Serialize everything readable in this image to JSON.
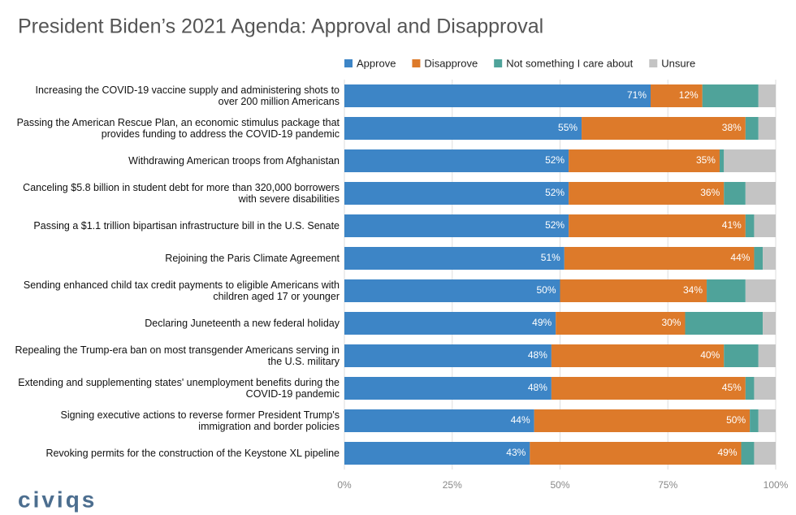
{
  "chart_data": {
    "type": "stacked-bar-horizontal",
    "title": "President Biden’s 2021 Agenda: Approval and Disapproval",
    "logo": "civiqs",
    "categories": [
      "Increasing the COVID-19 vaccine supply and administering shots to over 200 million Americans",
      "Passing the American Rescue Plan, an economic stimulus package that provides funding to address the COVID-19 pandemic",
      "Withdrawing American troops from Afghanistan",
      "Canceling $5.8 billion in student debt for more than 320,000 borrowers with severe disabilities",
      "Passing a $1.1 trillion bipartisan infrastructure bill in the U.S. Senate",
      "Rejoining the Paris Climate Agreement",
      "Sending enhanced child tax credit payments to eligible Americans with children aged 17 or younger",
      "Declaring Juneteenth a new federal holiday",
      "Repealing the Trump-era ban on most transgender Americans serving in the U.S. military",
      "Extending and supplementing states' unemployment benefits during the COVID-19 pandemic",
      "Signing executive actions to reverse former President Trump's immigration and border policies",
      "Revoking permits for the construction of the Keystone XL pipeline"
    ],
    "series": [
      {
        "name": "Approve",
        "color": "#3d85c6",
        "values": [
          71,
          55,
          52,
          52,
          52,
          51,
          50,
          49,
          48,
          48,
          44,
          43
        ],
        "value_labels": [
          "71%",
          "55%",
          "52%",
          "52%",
          "52%",
          "51%",
          "50%",
          "49%",
          "48%",
          "48%",
          "44%",
          "43%"
        ]
      },
      {
        "name": "Disapprove",
        "color": "#dd7a2a",
        "values": [
          12,
          38,
          35,
          36,
          41,
          44,
          34,
          30,
          40,
          45,
          50,
          49
        ],
        "value_labels": [
          "12%",
          "38%",
          "35%",
          "36%",
          "41%",
          "44%",
          "34%",
          "30%",
          "40%",
          "45%",
          "50%",
          "49%"
        ]
      },
      {
        "name": "Not something I care about",
        "color": "#4fa39a",
        "values": [
          13,
          3,
          1,
          5,
          2,
          2,
          9,
          18,
          8,
          2,
          2,
          3
        ]
      },
      {
        "name": "Unsure",
        "color": "#c4c4c4",
        "values": [
          4,
          4,
          12,
          7,
          5,
          3,
          7,
          3,
          4,
          5,
          4,
          5
        ]
      }
    ],
    "xlim": [
      0,
      100
    ],
    "xticks": [
      {
        "value": 0,
        "label": "0%"
      },
      {
        "value": 25,
        "label": "25%"
      },
      {
        "value": 50,
        "label": "50%"
      },
      {
        "value": 75,
        "label": "75%"
      },
      {
        "value": 100,
        "label": "100%"
      }
    ],
    "grid": true
  }
}
